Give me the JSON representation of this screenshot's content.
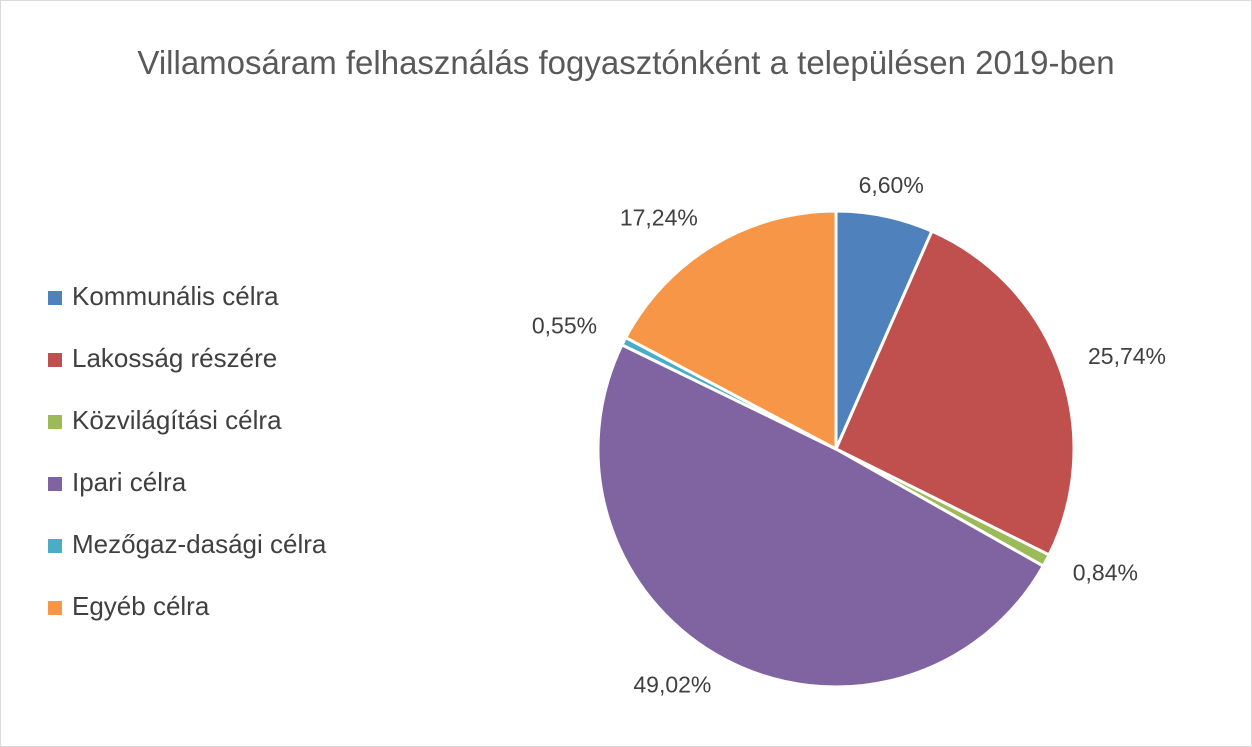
{
  "chart_data": {
    "type": "pie",
    "title": "Villamosáram felhasználás fogyasztónként a településen 2019-ben",
    "categories": [
      "Kommunális célra",
      "Lakosság részére",
      "Közvilágítási célra",
      "Ipari célra",
      "Mezőgaz-dasági célra",
      "Egyéb célra"
    ],
    "values": [
      6.6,
      25.74,
      0.84,
      49.02,
      0.55,
      17.24
    ],
    "value_labels": [
      "6,60%",
      "25,74%",
      "0,84%",
      "49,02%",
      "0,55%",
      "17,24%"
    ],
    "colors": [
      "#4f81bd",
      "#c0504d",
      "#9bbb59",
      "#8064a2",
      "#4bacc6",
      "#f79646"
    ],
    "legend": "left"
  }
}
